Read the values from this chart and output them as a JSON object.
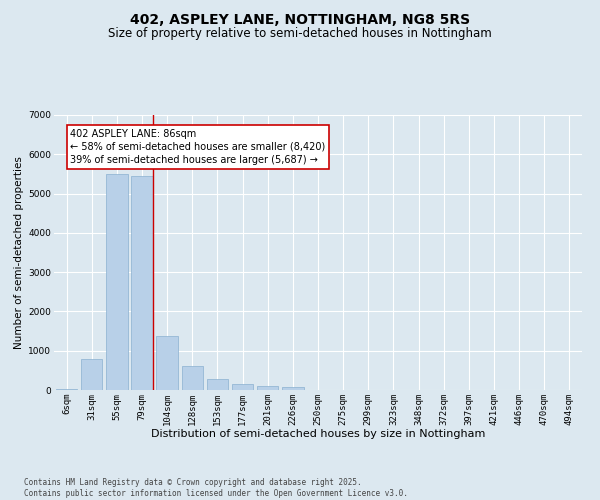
{
  "title": "402, ASPLEY LANE, NOTTINGHAM, NG8 5RS",
  "subtitle": "Size of property relative to semi-detached houses in Nottingham",
  "xlabel": "Distribution of semi-detached houses by size in Nottingham",
  "ylabel": "Number of semi-detached properties",
  "categories": [
    "6sqm",
    "31sqm",
    "55sqm",
    "79sqm",
    "104sqm",
    "128sqm",
    "153sqm",
    "177sqm",
    "201sqm",
    "226sqm",
    "250sqm",
    "275sqm",
    "299sqm",
    "323sqm",
    "348sqm",
    "372sqm",
    "397sqm",
    "421sqm",
    "446sqm",
    "470sqm",
    "494sqm"
  ],
  "values": [
    25,
    790,
    5500,
    5450,
    1380,
    620,
    290,
    165,
    105,
    65,
    10,
    0,
    0,
    0,
    0,
    0,
    0,
    0,
    0,
    0,
    0
  ],
  "bar_color": "#b8d0e8",
  "bar_edge_color": "#8ab0d0",
  "bg_color": "#dce8f0",
  "grid_color": "#ffffff",
  "annotation_text": "402 ASPLEY LANE: 86sqm\n← 58% of semi-detached houses are smaller (8,420)\n39% of semi-detached houses are larger (5,687) →",
  "vline_color": "#cc0000",
  "box_edge_color": "#cc0000",
  "ylim": [
    0,
    7000
  ],
  "yticks": [
    0,
    1000,
    2000,
    3000,
    4000,
    5000,
    6000,
    7000
  ],
  "title_fontsize": 10,
  "subtitle_fontsize": 8.5,
  "xlabel_fontsize": 8,
  "ylabel_fontsize": 7.5,
  "tick_fontsize": 6.5,
  "ann_fontsize": 7,
  "footer_text": "Contains HM Land Registry data © Crown copyright and database right 2025.\nContains public sector information licensed under the Open Government Licence v3.0.",
  "footer_fontsize": 5.5
}
